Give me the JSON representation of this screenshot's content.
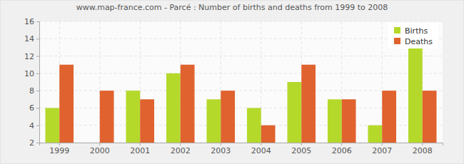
{
  "chart_data": {
    "type": "bar",
    "title": "www.map-france.com - Parcé : Number of births and deaths from 1999 to 2008",
    "categories": [
      "1999",
      "2000",
      "2001",
      "2002",
      "2003",
      "2004",
      "2005",
      "2006",
      "2007",
      "2008"
    ],
    "series": [
      {
        "name": "Births",
        "color": "#b5d92b",
        "values": [
          6,
          2,
          8,
          10,
          7,
          6,
          9,
          7,
          4,
          13
        ]
      },
      {
        "name": "Deaths",
        "color": "#e0622e",
        "values": [
          11,
          8,
          7,
          11,
          8,
          4,
          11,
          7,
          8,
          8
        ]
      }
    ],
    "ylim": [
      2,
      16
    ],
    "yticks": [
      2,
      4,
      6,
      8,
      10,
      12,
      14,
      16
    ],
    "grid": true,
    "legend": "top-right"
  }
}
